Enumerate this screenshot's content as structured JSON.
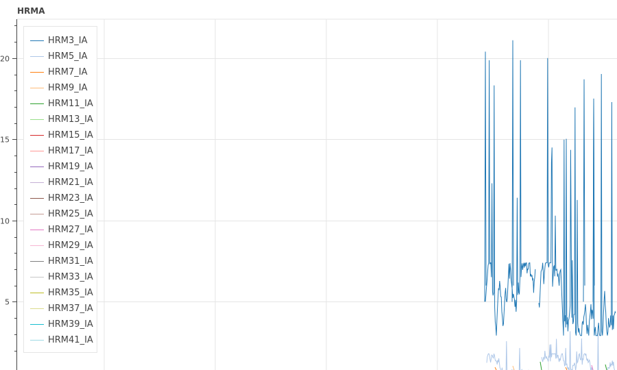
{
  "title": "HRMA",
  "chart_data": {
    "type": "line",
    "title": "HRMA",
    "xlabel": "",
    "ylabel": "",
    "ylim": [
      0.8,
      22.4
    ],
    "yticks": [
      5,
      10,
      15,
      20
    ],
    "grid": true,
    "legend_position": "top-left",
    "series": [
      {
        "name": "HRM3_IA",
        "color": "#1f77b4",
        "values_summary": "mostly 3-8 with spikes up to ~21 in the right portion"
      },
      {
        "name": "HRM5_IA",
        "color": "#aec7e8",
        "values_summary": "near 0-2.5 in the right portion"
      },
      {
        "name": "HRM7_IA",
        "color": "#ff7f0e"
      },
      {
        "name": "HRM9_IA",
        "color": "#ffbb78"
      },
      {
        "name": "HRM11_IA",
        "color": "#2ca02c"
      },
      {
        "name": "HRM13_IA",
        "color": "#98df8a"
      },
      {
        "name": "HRM15_IA",
        "color": "#d62728"
      },
      {
        "name": "HRM17_IA",
        "color": "#ff9896"
      },
      {
        "name": "HRM19_IA",
        "color": "#9467bd"
      },
      {
        "name": "HRM21_IA",
        "color": "#c5b0d5"
      },
      {
        "name": "HRM23_IA",
        "color": "#8c564b"
      },
      {
        "name": "HRM25_IA",
        "color": "#c49c94"
      },
      {
        "name": "HRM27_IA",
        "color": "#e377c2"
      },
      {
        "name": "HRM29_IA",
        "color": "#f7b6d2"
      },
      {
        "name": "HRM31_IA",
        "color": "#7f7f7f"
      },
      {
        "name": "HRM33_IA",
        "color": "#c7c7c7"
      },
      {
        "name": "HRM35_IA",
        "color": "#bcbd22"
      },
      {
        "name": "HRM37_IA",
        "color": "#dbdb8d"
      },
      {
        "name": "HRM39_IA",
        "color": "#17becf"
      },
      {
        "name": "HRM41_IA",
        "color": "#9edae5"
      }
    ]
  }
}
